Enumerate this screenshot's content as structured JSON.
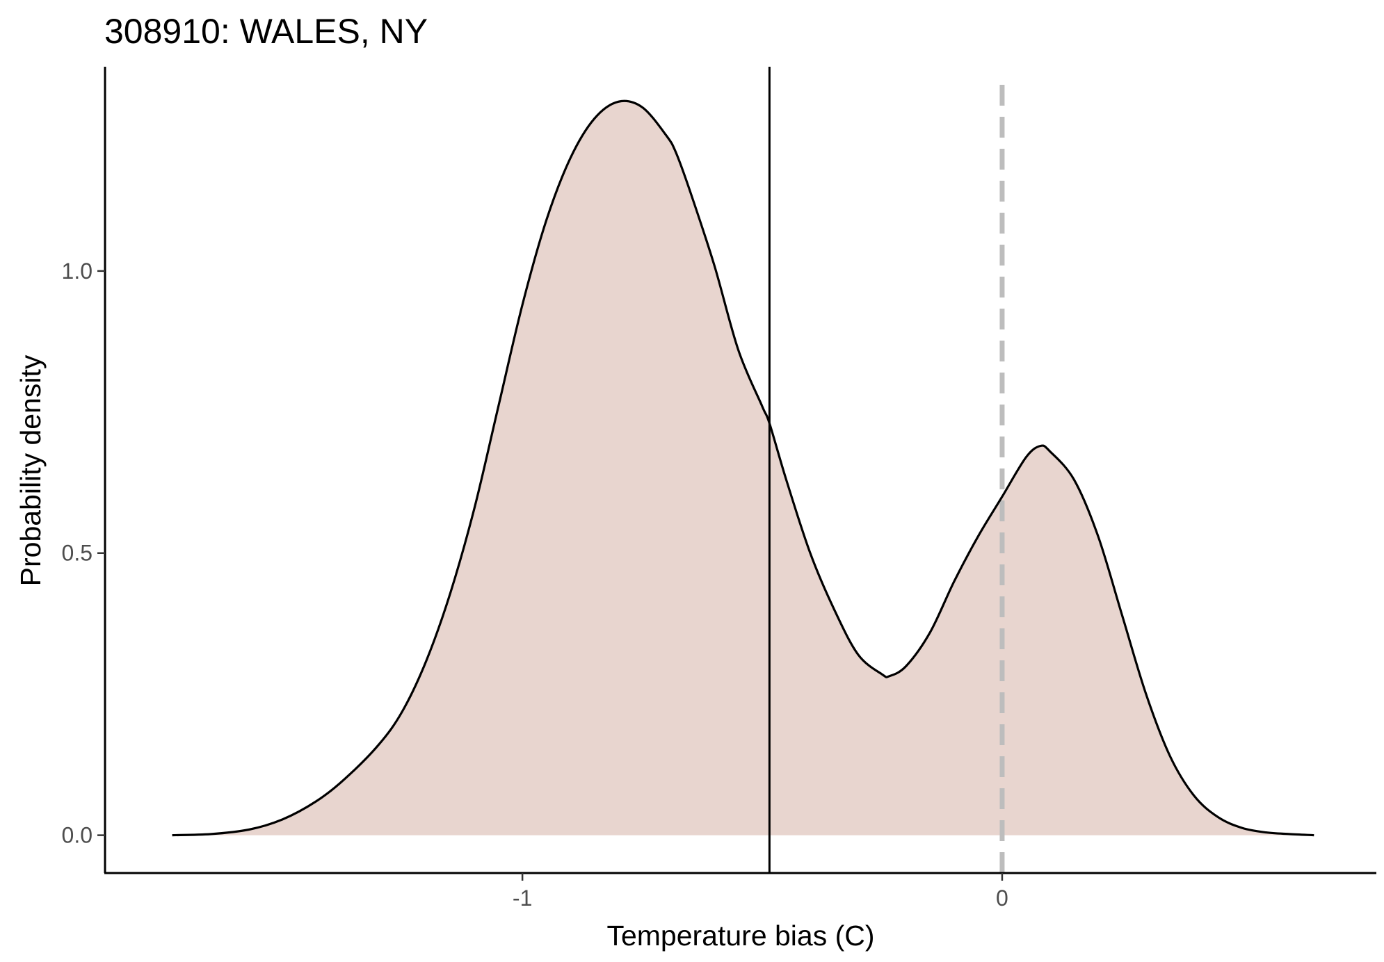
{
  "chart_data": {
    "type": "area",
    "title": "308910: WALES, NY",
    "xlabel": "Temperature bias (C)",
    "ylabel": "Probability density",
    "xlim": [
      -1.87,
      0.78
    ],
    "ylim": [
      -0.067,
      1.362
    ],
    "x_ticks": [
      {
        "value": -1,
        "label": "-1"
      },
      {
        "value": 0,
        "label": "0"
      }
    ],
    "y_ticks": [
      {
        "value": 0.0,
        "label": "0.0"
      },
      {
        "value": 0.5,
        "label": "0.5"
      },
      {
        "value": 1.0,
        "label": "1.0"
      }
    ],
    "grid": false,
    "legend": "none",
    "fill_color": "#e8d5cf",
    "line_color": "#000000",
    "reference_lines": [
      {
        "name": "mean-bias",
        "x": -0.485,
        "style": "solid",
        "color": "#000000"
      },
      {
        "name": "zero-bias",
        "x": 0.0,
        "style": "dashed",
        "color": "#bdbdbd",
        "y_top": 1.33
      }
    ],
    "series": [
      {
        "x": [
          -1.73,
          -1.65,
          -1.57,
          -1.5,
          -1.43,
          -1.37,
          -1.3,
          -1.25,
          -1.2,
          -1.15,
          -1.1,
          -1.05,
          -1.0,
          -0.95,
          -0.9,
          -0.85,
          -0.8,
          -0.75,
          -0.7,
          -0.68,
          -0.65,
          -0.6,
          -0.55,
          -0.5,
          -0.485,
          -0.45,
          -0.4,
          -0.35,
          -0.3,
          -0.25,
          -0.235,
          -0.2,
          -0.15,
          -0.1,
          -0.05,
          0.0,
          0.05,
          0.08,
          0.1,
          0.15,
          0.2,
          0.25,
          0.3,
          0.35,
          0.4,
          0.45,
          0.5,
          0.55,
          0.6,
          0.65
        ],
        "y": [
          0.0,
          0.002,
          0.01,
          0.028,
          0.06,
          0.1,
          0.16,
          0.22,
          0.31,
          0.43,
          0.58,
          0.76,
          0.94,
          1.09,
          1.2,
          1.27,
          1.3,
          1.29,
          1.24,
          1.21,
          1.14,
          1.01,
          0.86,
          0.76,
          0.73,
          0.63,
          0.5,
          0.4,
          0.32,
          0.285,
          0.282,
          0.3,
          0.36,
          0.45,
          0.53,
          0.6,
          0.67,
          0.69,
          0.68,
          0.63,
          0.53,
          0.39,
          0.25,
          0.14,
          0.07,
          0.032,
          0.013,
          0.005,
          0.002,
          0.0
        ]
      }
    ]
  }
}
